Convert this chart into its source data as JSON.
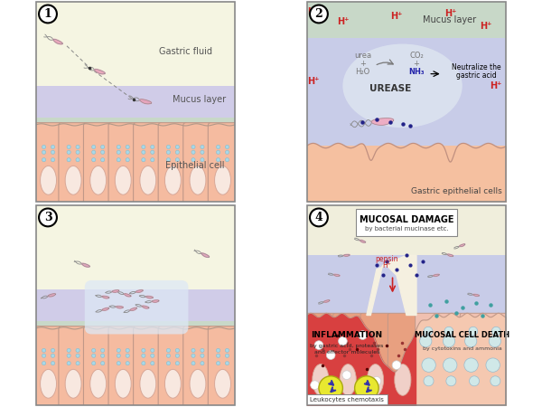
{
  "p1_bg_top": "#f5f5e0",
  "p1_bg_mucus_purple": "#d0cce8",
  "p1_bg_mucus_green": "#c8dcc8",
  "p1_bg_cell": "#f5c8b0",
  "p1_label_gastric": "Gastric fluid",
  "p1_label_mucus": "Mucus layer",
  "p1_label_epithelial": "Epithelial cell",
  "p2_bg_top": "#c8dcc8",
  "p2_bg_mucus": "#c8cce8",
  "p2_bg_cell": "#f5c0a0",
  "p2_label_mucus": "Mucus layer",
  "p2_label_gastric_cells": "Gastric epithelial cells",
  "p2_label_urease": "UREASE",
  "p3_bg_top": "#f5f5e0",
  "p3_bg_mucus_purple": "#d0cce8",
  "p3_bg_mucus_green": "#c8dcc8",
  "p3_bg_cell": "#f5c8b0",
  "p4_bg_top": "#f0eee0",
  "p4_bg_mucus": "#c8cce8",
  "p4_bg_red": "#e05050",
  "p4_bg_cell": "#f5c8b0",
  "p4_label_mucosal": "MUCOSAL DAMAGE",
  "p4_label_mucosal_sub": "by bacterial mucinase etc.",
  "p4_label_pepsin": "pepsin",
  "p4_label_h": "H⁺",
  "p4_label_inflam": "INFLAMMATION",
  "p4_label_inflam_sub": "by gastric acid, proteases\nand effector molecules",
  "p4_label_cell_death": "MUCOSAL CELL DEATH",
  "p4_label_cell_death_sub": "by cytotoxins and ammonia",
  "p4_label_leuko": "Leukocytes chemotaxis",
  "cell_color": "#f5bba0",
  "cell_border": "#c09888",
  "nucleus_color": "#ffffff",
  "nucleus_border": "#d8a898",
  "vacuole_color": "#a8d8e8",
  "bacteria_pink": "#e8a0b8",
  "bacteria_gray": "#909090",
  "h_color": "#cc2222",
  "blue_dot": "#222288"
}
